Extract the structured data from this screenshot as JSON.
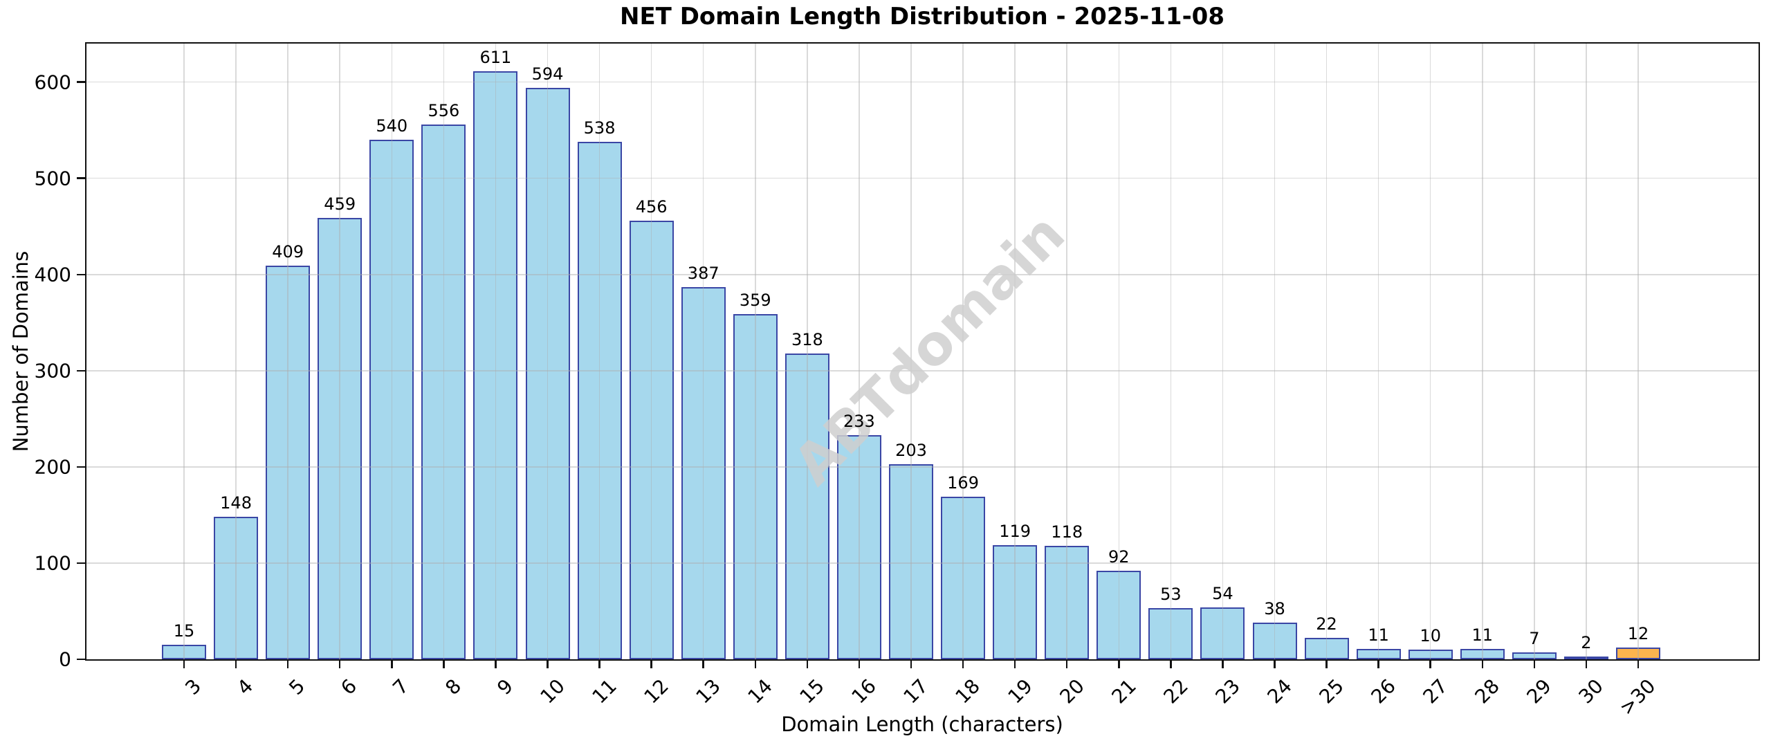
{
  "figure": {
    "title": "NET Domain Length Distribution - 2025-11-08",
    "watermark": "ABTdomain"
  },
  "chart_data": {
    "type": "bar",
    "title": "NET Domain Length Distribution - 2025-11-08",
    "xlabel": "Domain Length (characters)",
    "ylabel": "Number of Domains",
    "categories": [
      "3",
      "4",
      "5",
      "6",
      "7",
      "8",
      "9",
      "10",
      "11",
      "12",
      "13",
      "14",
      "15",
      "16",
      "17",
      "18",
      "19",
      "20",
      "21",
      "22",
      "23",
      "24",
      "25",
      "26",
      "27",
      "28",
      "29",
      "30",
      ">30"
    ],
    "values": [
      15,
      148,
      409,
      459,
      540,
      556,
      611,
      594,
      538,
      456,
      387,
      359,
      318,
      233,
      203,
      169,
      119,
      118,
      92,
      53,
      54,
      38,
      22,
      11,
      10,
      11,
      7,
      2,
      12
    ],
    "yticks": [
      0,
      100,
      200,
      300,
      400,
      500,
      600
    ],
    "ylim": [
      0,
      640
    ],
    "grid": true,
    "legend": null,
    "value_labels": true,
    "watermark": "ABTdomain",
    "colors": {
      "bar_fill": "#A6D8ED",
      "bar_fill_last": "#FCB44E",
      "bar_edge": "#3A46A5",
      "grid": "#dcdcdc",
      "spine": "#111111",
      "watermark": "#cfcfcf"
    }
  }
}
